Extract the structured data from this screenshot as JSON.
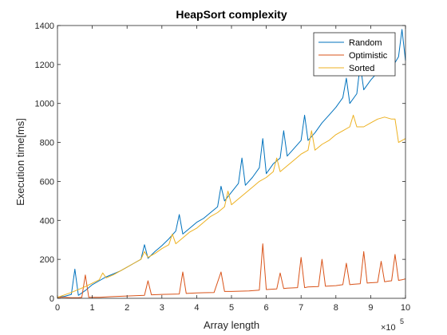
{
  "chart_data": {
    "type": "line",
    "title": "HeapSort complexity",
    "xlabel": "Array length",
    "ylabel": "Execution time[ms]",
    "xlim": [
      0,
      10
    ],
    "ylim": [
      0,
      1400
    ],
    "x_exponent_base": "×10",
    "x_exponent_power": "5",
    "xticks": [
      0,
      1,
      2,
      3,
      4,
      5,
      6,
      7,
      8,
      9,
      10
    ],
    "xtick_labels": [
      "0",
      "1",
      "2",
      "3",
      "4",
      "5",
      "6",
      "7",
      "8",
      "9",
      "10"
    ],
    "yticks": [
      0,
      200,
      400,
      600,
      800,
      1000,
      1200,
      1400
    ],
    "ytick_labels": [
      "0",
      "200",
      "400",
      "600",
      "800",
      "1000",
      "1200",
      "1400"
    ],
    "legend_position": "top-right",
    "grid": false,
    "series": [
      {
        "name": "Random",
        "color": "#0072BD",
        "x": [
          0,
          0.2,
          0.4,
          0.5,
          0.6,
          0.8,
          1.0,
          1.2,
          1.4,
          1.6,
          1.8,
          2.0,
          2.2,
          2.4,
          2.5,
          2.6,
          2.8,
          3.0,
          3.2,
          3.4,
          3.5,
          3.6,
          3.8,
          4.0,
          4.2,
          4.4,
          4.6,
          4.7,
          4.8,
          5.0,
          5.2,
          5.3,
          5.4,
          5.6,
          5.8,
          5.9,
          6.0,
          6.2,
          6.4,
          6.5,
          6.6,
          6.8,
          7.0,
          7.1,
          7.2,
          7.4,
          7.6,
          7.8,
          8.0,
          8.2,
          8.3,
          8.4,
          8.6,
          8.7,
          8.8,
          9.0,
          9.2,
          9.4,
          9.5,
          9.6,
          9.8,
          9.9,
          10.0
        ],
        "y": [
          5,
          10,
          20,
          150,
          15,
          40,
          70,
          90,
          110,
          125,
          140,
          160,
          180,
          200,
          275,
          205,
          240,
          270,
          305,
          345,
          430,
          330,
          360,
          390,
          410,
          440,
          470,
          575,
          500,
          545,
          590,
          720,
          580,
          620,
          670,
          820,
          640,
          690,
          720,
          860,
          730,
          770,
          810,
          940,
          810,
          850,
          900,
          940,
          980,
          1030,
          1130,
          1000,
          1050,
          1200,
          1070,
          1120,
          1160,
          1190,
          1360,
          1180,
          1240,
          1380,
          1220
        ]
      },
      {
        "name": "Optimistic",
        "color": "#D95319",
        "x": [
          0,
          0.2,
          0.4,
          0.6,
          0.7,
          0.8,
          0.9,
          1.2,
          1.5,
          2.0,
          2.5,
          2.6,
          2.7,
          3.0,
          3.5,
          3.6,
          3.7,
          4.0,
          4.5,
          4.7,
          4.8,
          5.0,
          5.5,
          5.8,
          5.9,
          6.0,
          6.3,
          6.4,
          6.5,
          6.6,
          6.9,
          7.0,
          7.1,
          7.2,
          7.5,
          7.6,
          7.7,
          8.0,
          8.2,
          8.3,
          8.4,
          8.5,
          8.7,
          8.8,
          8.9,
          9.0,
          9.2,
          9.3,
          9.4,
          9.5,
          9.6,
          9.7,
          9.8,
          9.9,
          10.0
        ],
        "y": [
          5,
          5,
          3,
          3,
          5,
          120,
          5,
          5,
          8,
          12,
          15,
          90,
          18,
          20,
          22,
          135,
          25,
          28,
          30,
          135,
          35,
          35,
          38,
          42,
          280,
          45,
          48,
          130,
          50,
          52,
          55,
          210,
          55,
          58,
          60,
          200,
          62,
          65,
          70,
          180,
          70,
          72,
          75,
          240,
          78,
          80,
          82,
          190,
          85,
          88,
          90,
          225,
          92,
          95,
          100
        ]
      },
      {
        "name": "Sorted",
        "color": "#EDB120",
        "x": [
          0,
          0.4,
          0.8,
          1.2,
          1.3,
          1.4,
          1.6,
          1.8,
          2.0,
          2.2,
          2.4,
          2.5,
          2.6,
          2.8,
          3.0,
          3.2,
          3.3,
          3.4,
          3.6,
          3.8,
          4.0,
          4.2,
          4.4,
          4.6,
          4.8,
          4.9,
          5.0,
          5.2,
          5.4,
          5.6,
          5.8,
          6.0,
          6.2,
          6.3,
          6.4,
          6.6,
          6.8,
          7.0,
          7.2,
          7.3,
          7.4,
          7.6,
          7.8,
          8.0,
          8.2,
          8.4,
          8.5,
          8.6,
          8.8,
          9.0,
          9.2,
          9.4,
          9.6,
          9.7,
          9.8,
          10.0
        ],
        "y": [
          5,
          30,
          60,
          95,
          130,
          105,
          120,
          140,
          160,
          180,
          200,
          240,
          210,
          230,
          255,
          275,
          330,
          280,
          310,
          340,
          360,
          390,
          420,
          440,
          470,
          550,
          480,
          510,
          540,
          570,
          600,
          620,
          650,
          720,
          650,
          680,
          710,
          740,
          760,
          860,
          760,
          790,
          810,
          840,
          860,
          880,
          940,
          880,
          880,
          900,
          920,
          930,
          920,
          920,
          800,
          820
        ]
      }
    ]
  }
}
